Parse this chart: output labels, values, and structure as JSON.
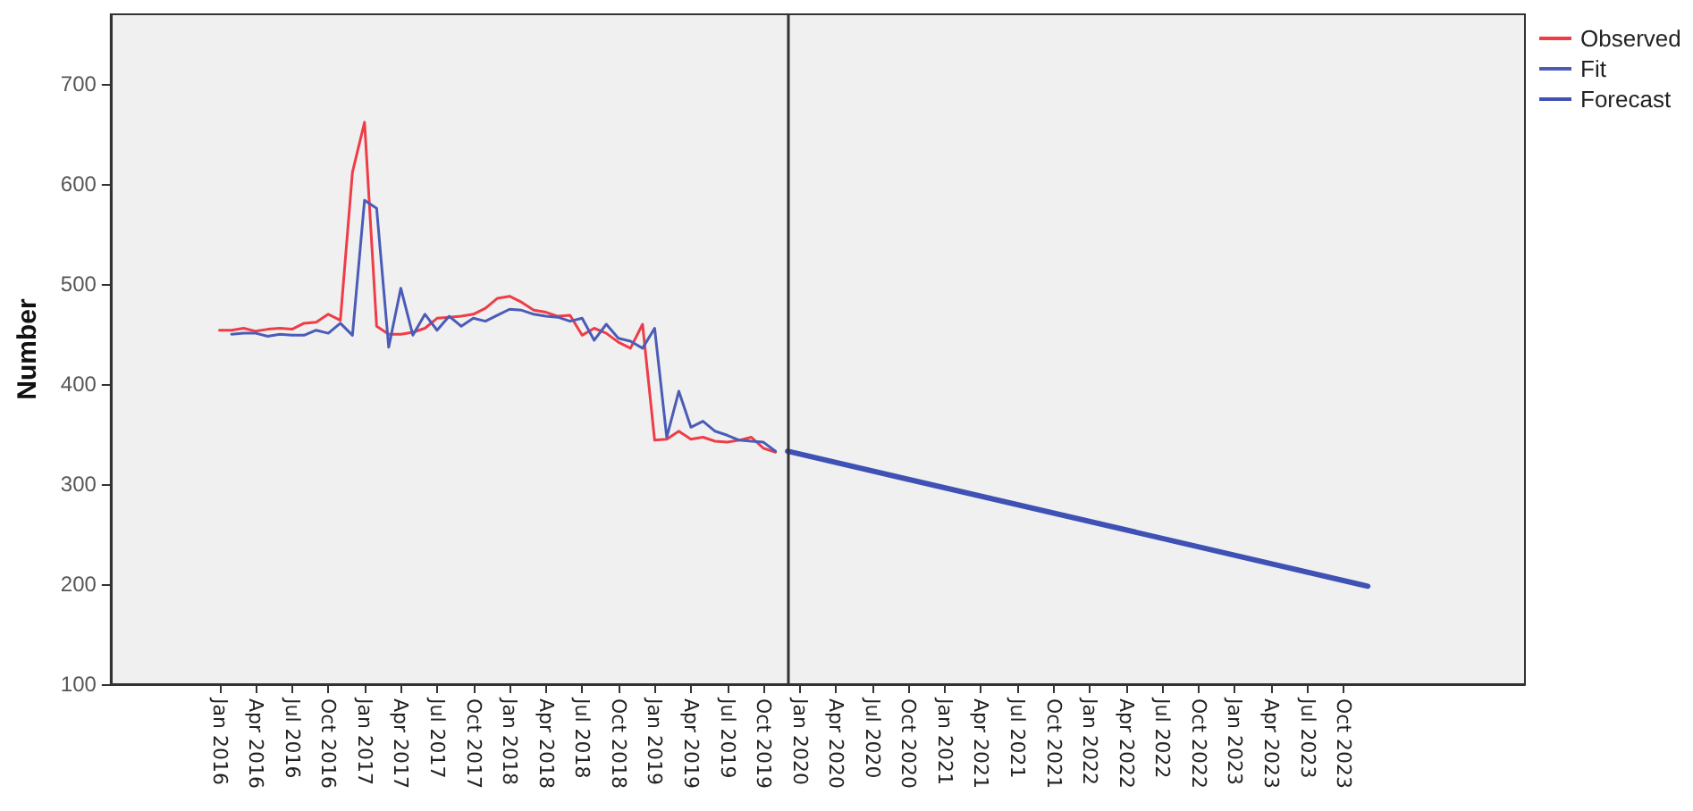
{
  "chart_data": {
    "type": "line",
    "ylabel": "Number",
    "x": [
      "2016-01",
      "2016-02",
      "2016-03",
      "2016-04",
      "2016-05",
      "2016-06",
      "2016-07",
      "2016-08",
      "2016-09",
      "2016-10",
      "2016-11",
      "2016-12",
      "2017-01",
      "2017-02",
      "2017-03",
      "2017-04",
      "2017-05",
      "2017-06",
      "2017-07",
      "2017-08",
      "2017-09",
      "2017-10",
      "2017-11",
      "2017-12",
      "2018-01",
      "2018-02",
      "2018-03",
      "2018-04",
      "2018-05",
      "2018-06",
      "2018-07",
      "2018-08",
      "2018-09",
      "2018-10",
      "2018-11",
      "2018-12",
      "2019-01",
      "2019-02",
      "2019-03",
      "2019-04",
      "2019-05",
      "2019-06",
      "2019-07",
      "2019-08",
      "2019-09",
      "2019-10",
      "2019-11"
    ],
    "series": [
      {
        "name": "Observed",
        "color": "#ee3d47",
        "values": [
          454,
          454,
          456,
          453,
          455,
          456,
          455,
          461,
          462,
          470,
          464,
          612,
          662,
          458,
          450,
          450,
          452,
          456,
          466,
          467,
          468,
          470,
          476,
          486,
          488,
          482,
          474,
          472,
          468,
          469,
          449,
          456,
          451,
          442,
          436,
          460,
          344,
          345,
          353,
          345,
          347,
          343,
          342,
          344,
          347,
          336,
          332
        ]
      },
      {
        "name": "Fit",
        "color": "#4a5cb8",
        "values": [
          null,
          450,
          451,
          451,
          448,
          450,
          449,
          449,
          454,
          451,
          461,
          449,
          584,
          576,
          437,
          496,
          449,
          470,
          454,
          468,
          458,
          466,
          463,
          469,
          475,
          474,
          470,
          468,
          467,
          463,
          466,
          444,
          460,
          446,
          443,
          436,
          456,
          347,
          393,
          357,
          363,
          353,
          349,
          344,
          343,
          342,
          333
        ]
      },
      {
        "name": "Forecast",
        "color": "#3f51b5",
        "x": [
          "2019-12",
          "2023-12"
        ],
        "values": [
          333,
          198
        ]
      }
    ],
    "xlim": [
      "2015-04",
      "2025-01"
    ],
    "xticks": [
      {
        "value": "2016-01",
        "label": "Jan 2016"
      },
      {
        "value": "2016-04",
        "label": "Apr 2016"
      },
      {
        "value": "2016-07",
        "label": "Jul 2016"
      },
      {
        "value": "2016-10",
        "label": "Oct 2016"
      },
      {
        "value": "2017-01",
        "label": "Jan 2017"
      },
      {
        "value": "2017-04",
        "label": "Apr 2017"
      },
      {
        "value": "2017-07",
        "label": "Jul 2017"
      },
      {
        "value": "2017-10",
        "label": "Oct 2017"
      },
      {
        "value": "2018-01",
        "label": "Jan 2018"
      },
      {
        "value": "2018-04",
        "label": "Apr 2018"
      },
      {
        "value": "2018-07",
        "label": "Jul 2018"
      },
      {
        "value": "2018-10",
        "label": "Oct 2018"
      },
      {
        "value": "2019-01",
        "label": "Jan 2019"
      },
      {
        "value": "2019-04",
        "label": "Apr 2019"
      },
      {
        "value": "2019-07",
        "label": "Jul 2019"
      },
      {
        "value": "2019-10",
        "label": "Oct 2019"
      },
      {
        "value": "2020-01",
        "label": "Jan 2020"
      },
      {
        "value": "2020-04",
        "label": "Apr 2020"
      },
      {
        "value": "2020-07",
        "label": "Jul 2020"
      },
      {
        "value": "2020-10",
        "label": "Oct 2020"
      },
      {
        "value": "2021-01",
        "label": "Jan 2021"
      },
      {
        "value": "2021-04",
        "label": "Apr 2021"
      },
      {
        "value": "2021-07",
        "label": "Jul 2021"
      },
      {
        "value": "2021-10",
        "label": "Oct 2021"
      },
      {
        "value": "2022-01",
        "label": "Jan 2022"
      },
      {
        "value": "2022-04",
        "label": "Apr 2022"
      },
      {
        "value": "2022-07",
        "label": "Jul 2022"
      },
      {
        "value": "2022-10",
        "label": "Oct 2022"
      },
      {
        "value": "2023-01",
        "label": "Jan 2023"
      },
      {
        "value": "2023-04",
        "label": "Apr 2023"
      },
      {
        "value": "2023-07",
        "label": "Jul 2023"
      },
      {
        "value": "2023-10",
        "label": "Oct 2023"
      }
    ],
    "ylim": [
      100,
      770
    ],
    "yticks": [
      100,
      200,
      300,
      400,
      500,
      600,
      700
    ],
    "ref_lines": [
      {
        "axis": "x",
        "value": "2019-12",
        "color": "#333333"
      }
    ],
    "grid": false,
    "legend": "top right",
    "marker": "none",
    "line_style": "solid"
  }
}
